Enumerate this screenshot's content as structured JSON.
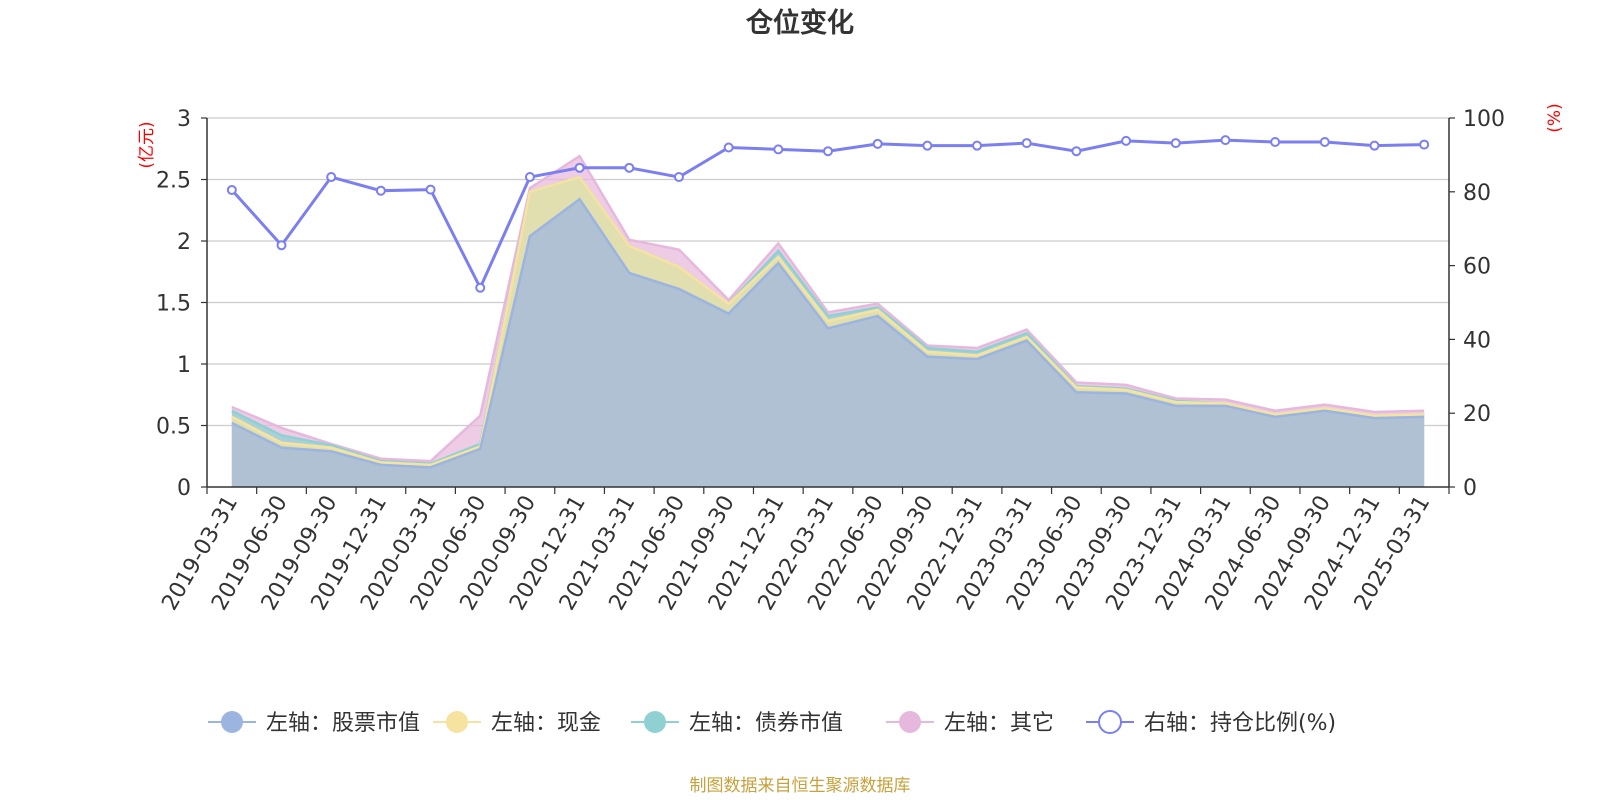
{
  "chart_data": {
    "type": "area",
    "title": "仓位变化",
    "left_unit": "(亿元)",
    "right_unit": "(%)",
    "source_note": "制图数据来自恒生聚源数据库",
    "categories": [
      "2019-03-31",
      "2019-06-30",
      "2019-09-30",
      "2019-12-31",
      "2020-03-31",
      "2020-06-30",
      "2020-09-30",
      "2020-12-31",
      "2021-03-31",
      "2021-06-30",
      "2021-09-30",
      "2021-12-31",
      "2022-03-31",
      "2022-06-30",
      "2022-09-30",
      "2022-12-31",
      "2023-03-31",
      "2023-06-30",
      "2023-09-30",
      "2023-12-31",
      "2024-03-31",
      "2024-06-30",
      "2024-09-30",
      "2024-12-31",
      "2025-03-31"
    ],
    "left_axis": {
      "min": 0,
      "max": 3,
      "ticks": [
        "0",
        "0.5",
        "1",
        "1.5",
        "2",
        "2.5",
        "3"
      ]
    },
    "right_axis": {
      "min": 0,
      "max": 100,
      "ticks": [
        "0",
        "20",
        "40",
        "60",
        "80",
        "100"
      ]
    },
    "stacked_series": [
      {
        "name": "左轴：股票市值",
        "color": "#9bb5e0",
        "values": [
          0.52,
          0.32,
          0.29,
          0.18,
          0.16,
          0.31,
          2.04,
          2.34,
          1.74,
          1.61,
          1.41,
          1.82,
          1.29,
          1.39,
          1.06,
          1.04,
          1.19,
          0.77,
          0.76,
          0.66,
          0.66,
          0.57,
          0.62,
          0.56,
          0.57
        ]
      },
      {
        "name": "左轴：现金",
        "color": "#f7e3a0",
        "values": [
          0.05,
          0.04,
          0.03,
          0.02,
          0.02,
          0.02,
          0.36,
          0.18,
          0.22,
          0.18,
          0.08,
          0.05,
          0.06,
          0.05,
          0.04,
          0.03,
          0.03,
          0.04,
          0.03,
          0.03,
          0.02,
          0.02,
          0.02,
          0.02,
          0.02
        ]
      },
      {
        "name": "左轴：债券市值",
        "color": "#8fd1d3",
        "values": [
          0.05,
          0.06,
          0.02,
          0.01,
          0.01,
          0.02,
          0.0,
          0.0,
          0.0,
          0.0,
          0.0,
          0.05,
          0.04,
          0.02,
          0.03,
          0.03,
          0.03,
          0.01,
          0.01,
          0.01,
          0.0,
          0.0,
          0.0,
          0.0,
          0.0
        ]
      },
      {
        "name": "左轴：其它",
        "color": "#e7b8dd",
        "values": [
          0.03,
          0.06,
          0.01,
          0.02,
          0.02,
          0.23,
          0.03,
          0.17,
          0.05,
          0.14,
          0.03,
          0.06,
          0.03,
          0.03,
          0.02,
          0.03,
          0.03,
          0.03,
          0.03,
          0.02,
          0.03,
          0.03,
          0.03,
          0.03,
          0.03
        ]
      }
    ],
    "line_series": {
      "name": "右轴：持仓比例(%)",
      "color": "#7b7ff0",
      "values": [
        80.5,
        65.5,
        84.0,
        80.3,
        80.6,
        54.0,
        84.0,
        86.5,
        86.5,
        84.0,
        92.0,
        91.5,
        91.0,
        93.0,
        92.5,
        92.5,
        93.2,
        91.0,
        93.8,
        93.2,
        94.0,
        93.5,
        93.5,
        92.5,
        92.8
      ]
    },
    "legend_position": "bottom",
    "grid": true
  }
}
